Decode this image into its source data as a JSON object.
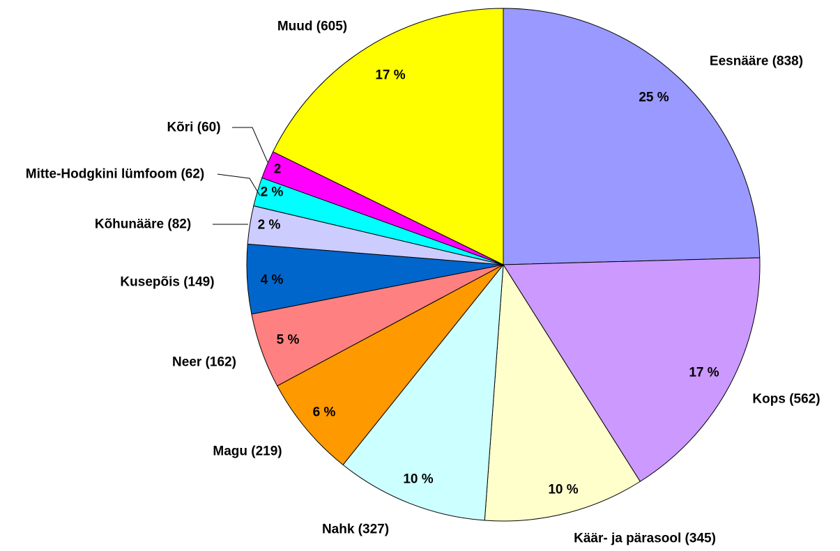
{
  "chart_data": {
    "type": "pie",
    "categories": [
      "Eesnääre (838)",
      "Kops (562)",
      "Käär- ja pärasool (345)",
      "Nahk (327)",
      "Magu (219)",
      "Neer (162)",
      "Kusepõis (149)",
      "Kõhunääre (82)",
      "Mitte-Hodgkini lümfoom (62)",
      "Kõri (60)",
      "Muud (605)"
    ],
    "values": [
      838,
      562,
      345,
      327,
      219,
      162,
      149,
      82,
      62,
      60,
      605
    ],
    "percent_labels": [
      "25 %",
      "17 %",
      "10 %",
      "10 %",
      "6 %",
      "5 %",
      "4 %",
      "2 %",
      "2 %",
      "2",
      "17 %"
    ],
    "colors": [
      "#9999ff",
      "#cc99ff",
      "#ffffcc",
      "#ccffff",
      "#ff9900",
      "#ff8080",
      "#0066cc",
      "#ccccff",
      "#00ffff",
      "#ff00ff",
      "#ffff00"
    ]
  }
}
